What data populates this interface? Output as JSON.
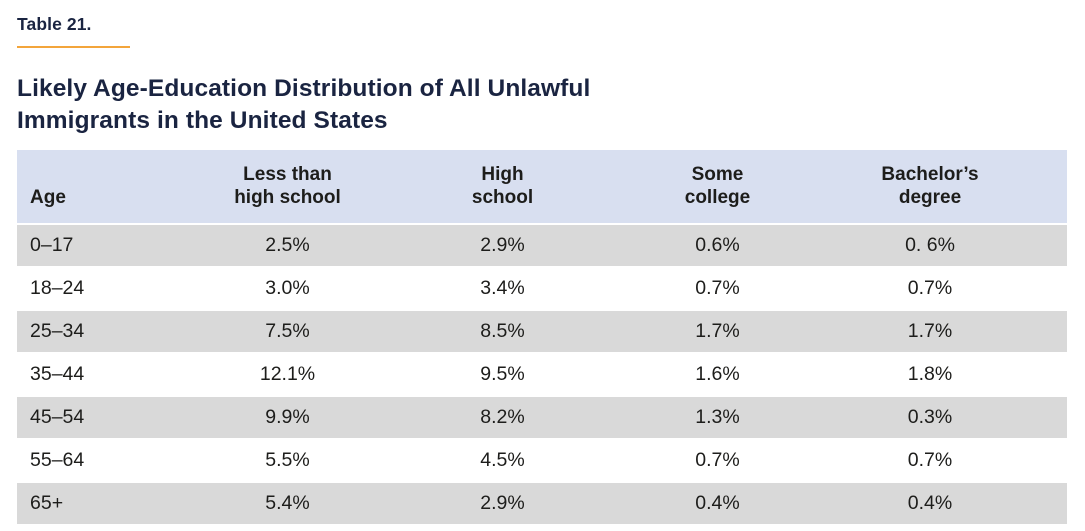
{
  "table_label": "Table 21.",
  "title": "Likely Age-Education Distribution of All Unlawful Immigrants in the United States",
  "colors": {
    "heading_navy": "#1a2441",
    "rule_orange": "#f3a53b",
    "header_row_bg": "#d8dff0",
    "alt_row_gray": "#d9d9d9",
    "body_text": "#1d1d1b",
    "background": "#ffffff"
  },
  "chart_data": {
    "type": "table",
    "title": "Likely Age-Education Distribution of All Unlawful Immigrants in the United States",
    "columns": [
      "Age",
      "Less than\nhigh school",
      "High\nschool",
      "Some\ncollege",
      "Bachelor’s\ndegree"
    ],
    "rows": [
      [
        "0–17",
        "2.5%",
        "2.9%",
        "0.6%",
        "0. 6%"
      ],
      [
        "18–24",
        "3.0%",
        "3.4%",
        "0.7%",
        "0.7%"
      ],
      [
        "25–34",
        "7.5%",
        "8.5%",
        "1.7%",
        "1.7%"
      ],
      [
        "35–44",
        "12.1%",
        "9.5%",
        "1.6%",
        "1.8%"
      ],
      [
        "45–54",
        "9.9%",
        "8.2%",
        "1.3%",
        "0.3%"
      ],
      [
        "55–64",
        "5.5%",
        "4.5%",
        "0.7%",
        "0.7%"
      ],
      [
        "65+",
        "5.4%",
        "2.9%",
        "0.4%",
        "0.4%"
      ]
    ]
  }
}
